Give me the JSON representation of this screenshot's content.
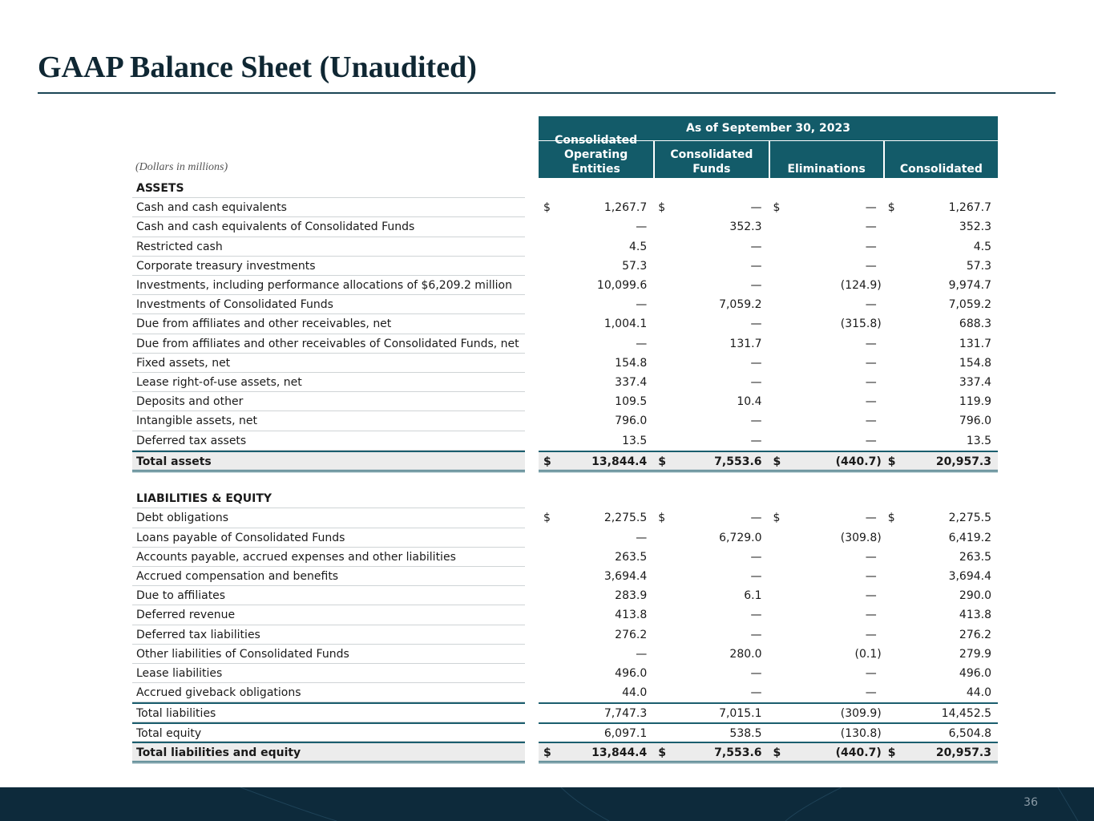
{
  "title": "GAAP Balance Sheet (Unaudited)",
  "table": {
    "period": "As of September 30, 2023",
    "units": "(Dollars in millions)",
    "currency": "$",
    "columns": [
      "Consolidated Operating Entities",
      "Consolidated Funds",
      "Eliminations",
      "Consolidated"
    ],
    "sections": [
      {
        "heading": "ASSETS",
        "rows": [
          {
            "label": "Cash and cash equivalents",
            "currency": true,
            "values": [
              "1,267.7",
              "—",
              "—",
              "1,267.7"
            ]
          },
          {
            "label": "Cash and cash equivalents of Consolidated Funds",
            "values": [
              "—",
              "352.3",
              "—",
              "352.3"
            ]
          },
          {
            "label": "Restricted cash",
            "values": [
              "4.5",
              "—",
              "—",
              "4.5"
            ]
          },
          {
            "label": "Corporate treasury investments",
            "values": [
              "57.3",
              "—",
              "—",
              "57.3"
            ]
          },
          {
            "label": "Investments, including performance allocations of $6,209.2 million",
            "values": [
              "10,099.6",
              "—",
              "(124.9)",
              "9,974.7"
            ]
          },
          {
            "label": "Investments of Consolidated Funds",
            "values": [
              "—",
              "7,059.2",
              "—",
              "7,059.2"
            ]
          },
          {
            "label": "Due from affiliates and other receivables, net",
            "values": [
              "1,004.1",
              "—",
              "(315.8)",
              "688.3"
            ]
          },
          {
            "label": "Due from affiliates and other receivables of Consolidated Funds, net",
            "values": [
              "—",
              "131.7",
              "—",
              "131.7"
            ]
          },
          {
            "label": "Fixed assets, net",
            "values": [
              "154.8",
              "—",
              "—",
              "154.8"
            ]
          },
          {
            "label": "Lease right-of-use assets, net",
            "values": [
              "337.4",
              "—",
              "—",
              "337.4"
            ]
          },
          {
            "label": "Deposits and other",
            "values": [
              "109.5",
              "10.4",
              "—",
              "119.9"
            ]
          },
          {
            "label": "Intangible assets, net",
            "values": [
              "796.0",
              "—",
              "—",
              "796.0"
            ]
          },
          {
            "label": "Deferred tax assets",
            "values": [
              "13.5",
              "—",
              "—",
              "13.5"
            ]
          },
          {
            "label": "Total assets",
            "currency": true,
            "total": true,
            "values": [
              "13,844.4",
              "7,553.6",
              "(440.7)",
              "20,957.3"
            ]
          }
        ]
      },
      {
        "heading": "LIABILITIES & EQUITY",
        "rows": [
          {
            "label": "Debt obligations",
            "currency": true,
            "values": [
              "2,275.5",
              "—",
              "—",
              "2,275.5"
            ]
          },
          {
            "label": "Loans payable of Consolidated Funds",
            "values": [
              "—",
              "6,729.0",
              "(309.8)",
              "6,419.2"
            ]
          },
          {
            "label": "Accounts payable, accrued expenses and other liabilities",
            "values": [
              "263.5",
              "—",
              "—",
              "263.5"
            ]
          },
          {
            "label": "Accrued compensation and benefits",
            "values": [
              "3,694.4",
              "—",
              "—",
              "3,694.4"
            ]
          },
          {
            "label": "Due to affiliates",
            "values": [
              "283.9",
              "6.1",
              "—",
              "290.0"
            ]
          },
          {
            "label": "Deferred revenue",
            "values": [
              "413.8",
              "—",
              "—",
              "413.8"
            ]
          },
          {
            "label": "Deferred tax liabilities",
            "values": [
              "276.2",
              "—",
              "—",
              "276.2"
            ]
          },
          {
            "label": "Other liabilities of Consolidated Funds",
            "values": [
              "—",
              "280.0",
              "(0.1)",
              "279.9"
            ]
          },
          {
            "label": "Lease liabilities",
            "values": [
              "496.0",
              "—",
              "—",
              "496.0"
            ]
          },
          {
            "label": "Accrued giveback obligations",
            "values": [
              "44.0",
              "—",
              "—",
              "44.0"
            ]
          },
          {
            "label": "Total liabilities",
            "subtotal": true,
            "values": [
              "7,747.3",
              "7,015.1",
              "(309.9)",
              "14,452.5"
            ]
          },
          {
            "label": "Total equity",
            "subtotal": true,
            "values": [
              "6,097.1",
              "538.5",
              "(130.8)",
              "6,504.8"
            ]
          },
          {
            "label": "Total liabilities and equity",
            "currency": true,
            "total": true,
            "values": [
              "13,844.4",
              "7,553.6",
              "(440.7)",
              "20,957.3"
            ]
          }
        ]
      }
    ]
  },
  "page_number": "36"
}
